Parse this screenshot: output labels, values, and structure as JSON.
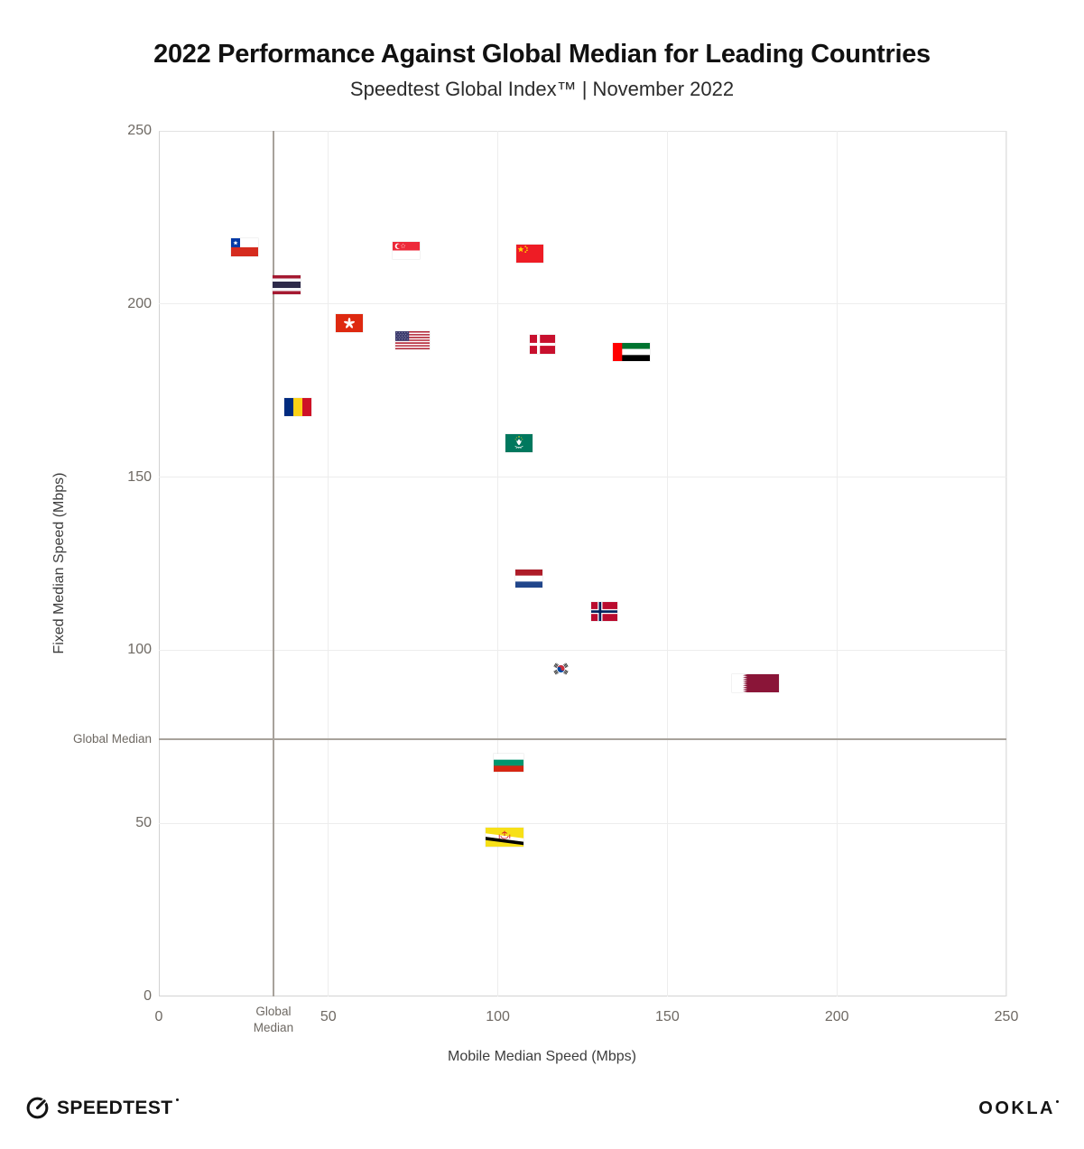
{
  "header": {
    "title": "2022 Performance Against Global Median for Leading Countries",
    "subtitle": "Speedtest Global Index™ | November 2022"
  },
  "chart_data": {
    "type": "scatter",
    "title": "2022 Performance Against Global Median for Leading Countries",
    "subtitle": "Speedtest Global Index™ | November 2022",
    "xlabel": "Mobile Median Speed (Mbps)",
    "ylabel": "Fixed Median Speed (Mbps)",
    "xlim": [
      0,
      250
    ],
    "ylim": [
      0,
      250
    ],
    "xticks": [
      0,
      50,
      100,
      150,
      200,
      250
    ],
    "yticks": [
      0,
      50,
      100,
      150,
      200,
      250
    ],
    "grid": true,
    "marker": "country-flag",
    "legend": "none",
    "global_median": {
      "label": "Global Median",
      "mobile_mbps": 33.8,
      "fixed_mbps": 74.3
    },
    "points": [
      {
        "country": "Chile",
        "code": "cl",
        "mobile_mbps": 25.3,
        "fixed_mbps": 216.5
      },
      {
        "country": "Thailand",
        "code": "th",
        "mobile_mbps": 37.6,
        "fixed_mbps": 205.5
      },
      {
        "country": "Singapore",
        "code": "sg",
        "mobile_mbps": 72.9,
        "fixed_mbps": 215.5
      },
      {
        "country": "Hong Kong (SAR)",
        "code": "hk",
        "mobile_mbps": 56.2,
        "fixed_mbps": 194.5
      },
      {
        "country": "United States",
        "code": "us",
        "mobile_mbps": 74.7,
        "fixed_mbps": 189.5
      },
      {
        "country": "Romania",
        "code": "ro",
        "mobile_mbps": 41.0,
        "fixed_mbps": 170.3
      },
      {
        "country": "China",
        "code": "cn",
        "mobile_mbps": 109.4,
        "fixed_mbps": 214.5
      },
      {
        "country": "Denmark",
        "code": "dk",
        "mobile_mbps": 113.2,
        "fixed_mbps": 188.3
      },
      {
        "country": "United Arab Emirates",
        "code": "ae",
        "mobile_mbps": 139.4,
        "fixed_mbps": 186.2
      },
      {
        "country": "Macau (SAR)",
        "code": "mo",
        "mobile_mbps": 106.2,
        "fixed_mbps": 159.8
      },
      {
        "country": "Netherlands",
        "code": "nl",
        "mobile_mbps": 109.2,
        "fixed_mbps": 120.7
      },
      {
        "country": "Norway",
        "code": "no",
        "mobile_mbps": 131.5,
        "fixed_mbps": 111.2
      },
      {
        "country": "South Korea",
        "code": "kr",
        "mobile_mbps": 118.6,
        "fixed_mbps": 94.6
      },
      {
        "country": "Qatar",
        "code": "qa",
        "mobile_mbps": 175.9,
        "fixed_mbps": 90.5
      },
      {
        "country": "Bulgaria",
        "code": "bg",
        "mobile_mbps": 103.2,
        "fixed_mbps": 67.6
      },
      {
        "country": "Brunei",
        "code": "bn",
        "mobile_mbps": 102.1,
        "fixed_mbps": 46.1
      }
    ]
  },
  "footer": {
    "speedtest_label": "SPEEDTEST",
    "ookla_label": "OOKLA"
  }
}
